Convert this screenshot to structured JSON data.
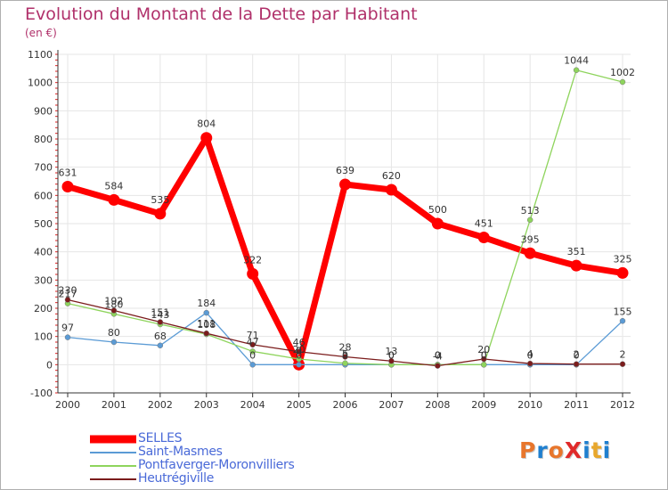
{
  "title": "Evolution du Montant de la Dette par Habitant",
  "subtitle": "(en €)",
  "logo_text": "ProXiti",
  "chart_data": {
    "type": "line",
    "title": "Evolution du Montant de la Dette par Habitant",
    "ylabel": "(en €)",
    "xlabel": "",
    "x": [
      "2000",
      "2001",
      "2002",
      "2003",
      "2004",
      "2005",
      "2006",
      "2007",
      "2008",
      "2009",
      "2010",
      "2011",
      "2012"
    ],
    "ylim": [
      -100,
      1100
    ],
    "yticks": [
      -100,
      0,
      100,
      200,
      300,
      400,
      500,
      600,
      700,
      800,
      900,
      1000,
      1100
    ],
    "grid": true,
    "legend_position": "bottom-left",
    "series": [
      {
        "name": "SELLES",
        "color": "#ff0000",
        "values": [
          631,
          584,
          535,
          804,
          322,
          0,
          639,
          620,
          500,
          451,
          395,
          351,
          325
        ],
        "labels": [
          "631",
          "584",
          "535",
          "804",
          "322",
          "0",
          "639",
          "620",
          "500",
          "451",
          "395",
          "351",
          "325"
        ]
      },
      {
        "name": "Saint-Masmes",
        "color": "#5b9bd5",
        "values": [
          97,
          80,
          68,
          184,
          0,
          0,
          0,
          0,
          0,
          0,
          0,
          0,
          155
        ],
        "labels": [
          "97",
          "80",
          "68",
          "184",
          "0",
          "0",
          "0",
          "0",
          "0",
          "0",
          "0",
          "0",
          "155"
        ]
      },
      {
        "name": "Pontfaverger-Moronvilliers",
        "color": "#8ed45c",
        "values": [
          217,
          180,
          143,
          108,
          47,
          20,
          5,
          0,
          0,
          0,
          513,
          1044,
          1002
        ],
        "labels": [
          "217",
          "180",
          "143",
          "108",
          "47",
          "20",
          "5",
          "0",
          "0",
          "0",
          "513",
          "1044",
          "1002"
        ]
      },
      {
        "name": "Heutrégiville",
        "color": "#7b1c1c",
        "values": [
          230,
          192,
          151,
          111,
          71,
          46,
          28,
          13,
          -4,
          20,
          4,
          2,
          2
        ],
        "labels": [
          "230",
          "192",
          "151",
          "111",
          "71",
          "46",
          "28",
          "13",
          "-4",
          "20",
          "4",
          "2",
          "2"
        ]
      }
    ]
  }
}
